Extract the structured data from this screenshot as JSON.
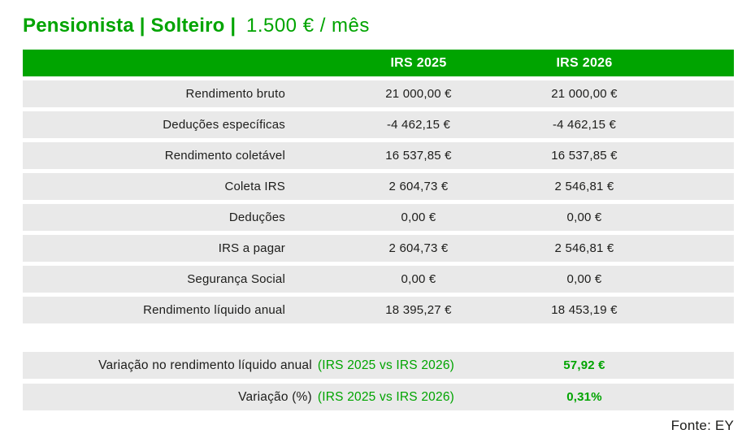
{
  "chart_data": {
    "type": "table",
    "title": "Pensionista | Solteiro | 1.500 € / mês",
    "title_bold": "Pensionista | Solteiro |",
    "title_regular": "1.500 € / mês",
    "columns": [
      "IRS 2025",
      "IRS 2026"
    ],
    "rows": [
      {
        "label": "Rendimento bruto",
        "irs2025": "21 000,00 €",
        "irs2026": "21 000,00 €"
      },
      {
        "label": "Deduções específicas",
        "irs2025": "-4 462,15 €",
        "irs2026": "-4 462,15 €"
      },
      {
        "label": "Rendimento coletável",
        "irs2025": "16 537,85 €",
        "irs2026": "16 537,85 €"
      },
      {
        "label": "Coleta IRS",
        "irs2025": "2 604,73 €",
        "irs2026": "2 546,81 €"
      },
      {
        "label": "Deduções",
        "irs2025": "0,00 €",
        "irs2026": "0,00 €"
      },
      {
        "label": "IRS a pagar",
        "irs2025": "2 604,73 €",
        "irs2026": "2 546,81 €"
      },
      {
        "label": "Segurança Social",
        "irs2025": "0,00 €",
        "irs2026": "0,00 €"
      },
      {
        "label": "Rendimento líquido anual",
        "irs2025": "18 395,27 €",
        "irs2026": "18 453,19 €"
      }
    ],
    "summary_rows": [
      {
        "label": "Variação no rendimento líquido anual",
        "note": "(IRS 2025 vs IRS 2026)",
        "value": "57,92 €"
      },
      {
        "label": "Variação (%)",
        "note": "(IRS 2025 vs IRS 2026)",
        "value": "0,31%"
      }
    ],
    "source": "Fonte: EY",
    "colors": {
      "accent_green": "#00a400",
      "row_gray": "#e9e9e9",
      "header_text": "#ffffff",
      "body_text": "#1d1d1b"
    }
  }
}
